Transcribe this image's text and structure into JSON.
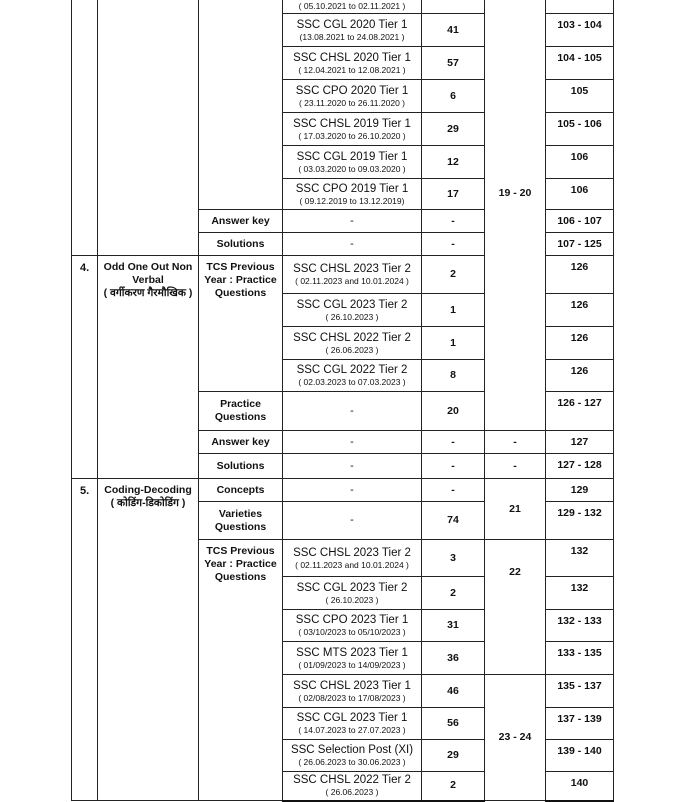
{
  "section3": {
    "rows": [
      {
        "date": "( 05.10.2021 to 02.11.2021 )",
        "questions": "",
        "pages": ""
      },
      {
        "exam": "SSC CGL 2020 Tier 1",
        "date": "(13.08.2021 to 24.08.2021  )",
        "questions": "41",
        "pages": "103 - 104"
      },
      {
        "exam": "SSC CHSL 2020 Tier 1",
        "date": "( 12.04.2021 to 12.08.2021 )",
        "questions": "57",
        "pages": "104 - 105"
      },
      {
        "exam": "SSC CPO 2020 Tier 1",
        "date": "( 23.11.2020 to 26.11.2020 )",
        "questions": "6",
        "pages": "105"
      },
      {
        "exam": "SSC CHSL 2019 Tier 1",
        "date": "( 17.03.2020 to 26.10.2020 )",
        "questions": "29",
        "pages": "105 - 106"
      },
      {
        "exam": "SSC CGL 2019 Tier 1",
        "date": "( 03.03.2020 to 09.03.2020 )",
        "questions": "12",
        "pages": "106"
      },
      {
        "exam": "SSC CPO 2019 Tier 1",
        "date": "( 09.12.2019 to 13.12.2019)",
        "questions": "17",
        "pages": "106"
      }
    ],
    "days": "19 - 20",
    "answer_key": {
      "label": "Answer key",
      "exam": "-",
      "questions": "-",
      "pages": "106 - 107"
    },
    "solutions": {
      "label": "Solutions",
      "exam": "-",
      "questions": "-",
      "pages": "107 - 125"
    }
  },
  "section4": {
    "sn": "4.",
    "topic": "Odd One Out Non Verbal",
    "topic_hindi": "( वर्गीकरण गैरमौखिक )",
    "tcs_label": "TCS Previous Year : Practice Questions",
    "rows": [
      {
        "exam": "SSC CHSL 2023 Tier 2",
        "date": "( 02.11.2023 and 10.01.2024 )",
        "questions": "2",
        "pages": "126"
      },
      {
        "exam": "SSC CGL 2023 Tier 2",
        "date": "( 26.10.2023 )",
        "questions": "1",
        "pages": "126"
      },
      {
        "exam": "SSC CHSL 2022 Tier 2",
        "date": "( 26.06.2023 )",
        "questions": "1",
        "pages": "126"
      },
      {
        "exam": "SSC CGL 2022 Tier 2",
        "date": "( 02.03.2023 to 07.03.2023 )",
        "questions": "8",
        "pages": "126"
      }
    ],
    "practice": {
      "label": "Practice Questions",
      "exam": "-",
      "questions": "20",
      "pages": "126 - 127"
    },
    "answer_key": {
      "label": "Answer key",
      "exam": "-",
      "questions": "-",
      "days": "-",
      "pages": "127"
    },
    "solutions": {
      "label": "Solutions",
      "exam": "-",
      "questions": "-",
      "days": "-",
      "pages": "127 - 128"
    }
  },
  "section5": {
    "sn": "5.",
    "topic": "Coding-Decoding",
    "topic_hindi": "( कोडिंग-डिकोडिंग )",
    "concepts": {
      "label": "Concepts",
      "exam": "-",
      "questions": "-",
      "pages": "129"
    },
    "varieties": {
      "label": "Varieties Questions",
      "exam": "-",
      "questions": "74",
      "pages": "129 - 132"
    },
    "days_a": "21",
    "tcs_label": "TCS Previous Year : Practice Questions",
    "rows": [
      {
        "exam": "SSC CHSL 2023 Tier 2",
        "date": "( 02.11.2023 and 10.01.2024 )",
        "questions": "3",
        "pages": "132"
      },
      {
        "exam": "SSC CGL 2023 Tier 2",
        "date": "( 26.10.2023 )",
        "questions": "2",
        "pages": "132"
      },
      {
        "exam": "SSC CPO 2023 Tier 1",
        "date": "( 03/10/2023 to 05/10/2023 )",
        "questions": "31",
        "pages": "132 - 133"
      },
      {
        "exam": "SSC MTS 2023 Tier 1",
        "date": "( 01/09/2023 to 14/09/2023 )",
        "questions": "36",
        "pages": "133 - 135"
      },
      {
        "exam": "SSC CHSL 2023 Tier 1",
        "date": "( 02/08/2023 to 17/08/2023 )",
        "questions": "46",
        "pages": "135 - 137"
      },
      {
        "exam": "SSC CGL 2023 Tier 1",
        "date": "( 14.07.2023 to 27.07.2023 )",
        "questions": "56",
        "pages": "137 - 139"
      },
      {
        "exam": "SSC Selection Post (XI)",
        "date": "( 26.06.2023 to 30.06.2023 )",
        "questions": "29",
        "pages": "139 - 140"
      },
      {
        "exam": "SSC CHSL 2022 Tier 2",
        "date": "( 26.06.2023 )",
        "questions": "2",
        "pages": "140"
      }
    ],
    "days_b": "22",
    "days_c": "23 - 24"
  }
}
